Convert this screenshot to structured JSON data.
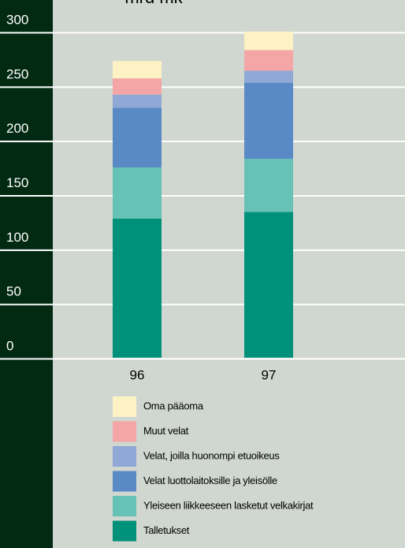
{
  "chart_data": {
    "type": "stacked_bar",
    "title": "mrd mk",
    "categories": [
      "96",
      "97"
    ],
    "series": [
      {
        "name": "Talletukset",
        "color": "#00917a",
        "values": [
          128,
          134
        ]
      },
      {
        "name": "Yleiseen liikkeeseen lasketut velkakirjat",
        "color": "#66c2b5",
        "values": [
          47,
          49
        ]
      },
      {
        "name": "Velat luottolaitoksille ja yleisölle",
        "color": "#5a8ac6",
        "values": [
          55,
          70
        ]
      },
      {
        "name": "Velat, joilla huonompi etuoikeus",
        "color": "#8fa8d6",
        "values": [
          12,
          11
        ]
      },
      {
        "name": "Muut velat",
        "color": "#f4a6a6",
        "values": [
          15,
          19
        ]
      },
      {
        "name": "Oma pääoma",
        "color": "#fdf2c4",
        "values": [
          16,
          17
        ]
      }
    ],
    "ylim": [
      0,
      300
    ],
    "yticks": [
      0,
      50,
      100,
      150,
      200,
      250,
      300
    ],
    "grid": true
  }
}
